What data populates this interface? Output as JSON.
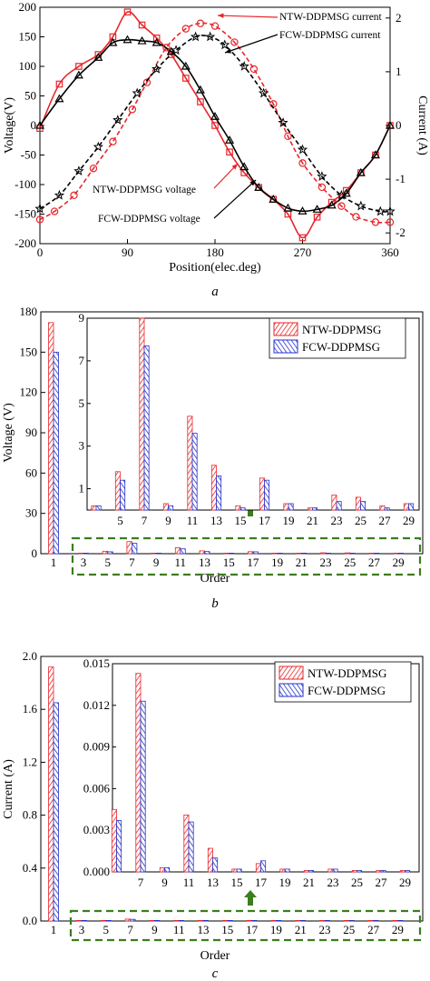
{
  "chart_data": [
    {
      "panel": "a",
      "type": "line",
      "xlabel": "Position(elec.deg)",
      "ylabel": "Voltage(V)",
      "y2label": "Current (A)",
      "xlim": [
        0,
        360
      ],
      "ylim": [
        -200,
        200
      ],
      "y2lim": [
        -2.2,
        2.2
      ],
      "xticks": [
        "0",
        "90",
        "180",
        "270",
        "360"
      ],
      "yticks": [
        "-200",
        "-150",
        "-100",
        "-50",
        "0",
        "50",
        "100",
        "150",
        "200"
      ],
      "y2ticks": [
        "-2",
        "-1",
        "0",
        "1",
        "2"
      ],
      "series": [
        {
          "name": "NTW-DDPMSG voltage",
          "axis": "left",
          "color": "#e8262b",
          "dash": "solid",
          "marker": "square",
          "x": [
            0,
            20,
            40,
            60,
            75,
            90,
            105,
            120,
            135,
            150,
            165,
            180,
            195,
            210,
            225,
            240,
            255,
            270,
            285,
            300,
            315,
            330,
            345,
            360
          ],
          "y": [
            -5,
            70,
            100,
            120,
            150,
            192,
            170,
            148,
            120,
            80,
            40,
            0,
            -45,
            -80,
            -105,
            -125,
            -150,
            -190,
            -155,
            -130,
            -110,
            -80,
            -50,
            0
          ]
        },
        {
          "name": "FCW-DDPMSG voltage",
          "axis": "left",
          "color": "#000000",
          "dash": "solid",
          "marker": "triangle",
          "x": [
            0,
            20,
            40,
            60,
            75,
            90,
            105,
            120,
            135,
            150,
            165,
            180,
            195,
            210,
            225,
            240,
            255,
            270,
            285,
            300,
            315,
            330,
            345,
            360
          ],
          "y": [
            0,
            45,
            85,
            115,
            140,
            145,
            143,
            140,
            125,
            100,
            60,
            15,
            -25,
            -70,
            -105,
            -125,
            -140,
            -145,
            -142,
            -135,
            -115,
            -80,
            -50,
            0
          ]
        },
        {
          "name": "NTW-DDPMSG current",
          "axis": "right",
          "color": "#e8262b",
          "dash": "dashed",
          "marker": "circle",
          "x": [
            0,
            15,
            35,
            55,
            75,
            95,
            110,
            130,
            150,
            165,
            180,
            200,
            220,
            240,
            255,
            270,
            290,
            310,
            325,
            345,
            360
          ],
          "y": [
            -1.75,
            -1.6,
            -1.3,
            -0.8,
            -0.3,
            0.3,
            0.8,
            1.45,
            1.8,
            1.9,
            1.85,
            1.55,
            1.05,
            0.4,
            -0.2,
            -0.7,
            -1.15,
            -1.5,
            -1.7,
            -1.8,
            -1.8
          ]
        },
        {
          "name": "FCW-DDPMSG current",
          "axis": "right",
          "color": "#000000",
          "dash": "dashed",
          "marker": "star",
          "x": [
            0,
            20,
            40,
            60,
            80,
            100,
            120,
            140,
            160,
            175,
            190,
            210,
            230,
            250,
            270,
            290,
            310,
            330,
            350,
            360
          ],
          "y": [
            -1.55,
            -1.3,
            -0.85,
            -0.4,
            0.1,
            0.6,
            1.05,
            1.4,
            1.65,
            1.65,
            1.5,
            1.1,
            0.6,
            0.05,
            -0.45,
            -0.95,
            -1.3,
            -1.5,
            -1.6,
            -1.6
          ]
        }
      ],
      "annotations": [
        "NTW-DDPMSG current",
        "FCW-DDPMSG current",
        "NTW-DDPMSG voltage",
        "FCW-DDPMSG voltage"
      ],
      "caption": "a"
    },
    {
      "panel": "b",
      "type": "bar",
      "xlabel": "Order",
      "ylabel": "Voltage (V)",
      "ylim": [
        0,
        180
      ],
      "yticks": [
        "0",
        "30",
        "60",
        "90",
        "120",
        "150",
        "180"
      ],
      "categories": [
        "1",
        "3",
        "5",
        "7",
        "9",
        "11",
        "13",
        "15",
        "17",
        "19",
        "21",
        "23",
        "25",
        "27",
        "29"
      ],
      "series": [
        {
          "name": "NTW-DDPMSG",
          "values": [
            172,
            0.2,
            1.8,
            9.0,
            0.3,
            4.4,
            2.1,
            0.2,
            1.5,
            0.3,
            0.1,
            0.7,
            0.6,
            0.2,
            0.3
          ]
        },
        {
          "name": "FCW-DDPMSG",
          "values": [
            150,
            0.2,
            1.4,
            7.7,
            0.2,
            3.6,
            1.6,
            0.1,
            1.4,
            0.3,
            0.1,
            0.4,
            0.4,
            0.1,
            0.3
          ]
        }
      ],
      "inset": {
        "ylim": [
          0,
          9
        ],
        "yticks": [
          "1",
          "3",
          "5",
          "7",
          "9"
        ],
        "categories": [
          "3",
          "5",
          "7",
          "9",
          "11",
          "13",
          "15",
          "17",
          "19",
          "21",
          "23",
          "25",
          "27",
          "29"
        ]
      },
      "caption": "b"
    },
    {
      "panel": "c",
      "type": "bar",
      "xlabel": "Order",
      "ylabel": "Current (A)",
      "ylim": [
        0,
        2.0
      ],
      "yticks": [
        "0.0",
        "0.4",
        "0.8",
        "1.2",
        "1.6",
        "2.0"
      ],
      "categories": [
        "1",
        "3",
        "5",
        "7",
        "9",
        "11",
        "13",
        "15",
        "17",
        "19",
        "21",
        "23",
        "25",
        "27",
        "29"
      ],
      "series": [
        {
          "name": "NTW-DDPMSG",
          "values": [
            1.92,
            0.0003,
            0.0045,
            0.0143,
            0.0003,
            0.0041,
            0.0017,
            0.0002,
            0.0006,
            0.0002,
            0.0001,
            0.0002,
            0.0001,
            0.0001,
            0.0001
          ]
        },
        {
          "name": "FCW-DDPMSG",
          "values": [
            1.65,
            0.0008,
            0.0037,
            0.0123,
            0.0003,
            0.0036,
            0.001,
            0.0002,
            0.0008,
            0.0002,
            0.0001,
            0.0002,
            0.0001,
            0.0001,
            0.0001
          ]
        }
      ],
      "inset": {
        "ylim": [
          0,
          0.015
        ],
        "yticks": [
          "0.000",
          "0.003",
          "0.006",
          "0.009",
          "0.012",
          "0.015"
        ],
        "categories": [
          "5",
          "7",
          "9",
          "11",
          "13",
          "15",
          "17",
          "19",
          "21",
          "23",
          "25",
          "27",
          "29"
        ]
      },
      "caption": "c"
    }
  ]
}
